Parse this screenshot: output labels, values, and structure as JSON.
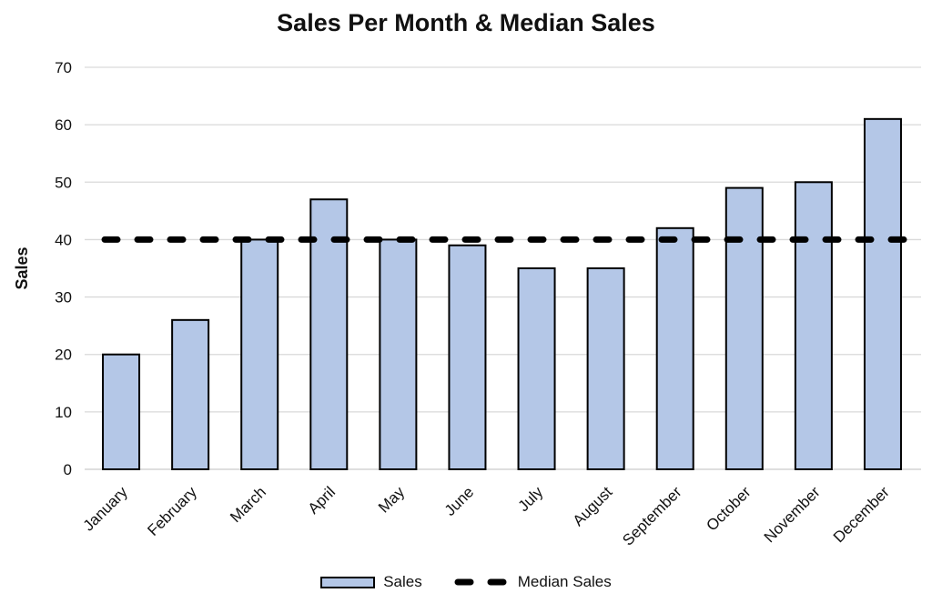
{
  "chart_data": {
    "type": "bar",
    "title": "Sales Per Month & Median Sales",
    "categories": [
      "January",
      "February",
      "March",
      "April",
      "May",
      "June",
      "July",
      "August",
      "September",
      "October",
      "November",
      "December"
    ],
    "series": [
      {
        "name": "Sales",
        "type": "bar",
        "values": [
          20,
          26,
          40,
          47,
          40,
          39,
          35,
          35,
          42,
          49,
          50,
          61
        ]
      },
      {
        "name": "Median Sales",
        "type": "dashed_line",
        "value": 40
      }
    ],
    "xlabel": "",
    "ylabel": "Sales",
    "ylim": [
      0,
      70
    ],
    "yticks": [
      0,
      10,
      20,
      30,
      40,
      50,
      60,
      70
    ],
    "grid": true,
    "legend_position": "bottom",
    "colors": {
      "bar_fill": "#B4C7E7",
      "bar_stroke": "#000000",
      "median_line": "#000000",
      "gridline": "#D9D9D9",
      "axis_line": "#C9C9C9",
      "text": "#111111"
    }
  }
}
